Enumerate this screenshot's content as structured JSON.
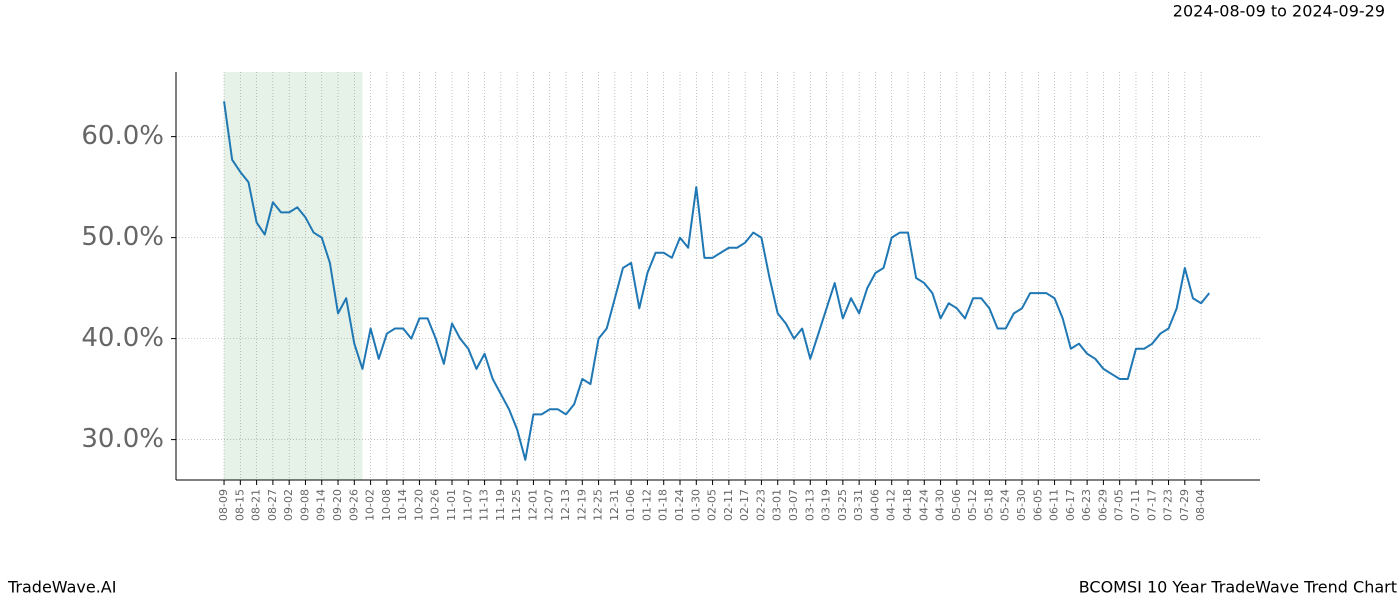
{
  "chart_data": {
    "type": "line",
    "title": "BCOMSI 10 Year TradeWave Trend Chart",
    "subtitle": "2024-08-09 to 2024-09-29",
    "watermark": "TradeWave.AI",
    "highlight_range": [
      0,
      51
    ],
    "highlight_color": "#d6ead7",
    "grid": true,
    "xlim": [
      -17.7,
      381.7
    ],
    "ylim": [
      26,
      66.4
    ],
    "yticks": [
      {
        "value": 30,
        "label": "30.0%"
      },
      {
        "value": 40,
        "label": "40.0%"
      },
      {
        "value": 50,
        "label": "50.0%"
      },
      {
        "value": 60,
        "label": "60.0%"
      }
    ],
    "xticks": [
      {
        "value": 0,
        "label": "08-09"
      },
      {
        "value": 6,
        "label": "08-15"
      },
      {
        "value": 12,
        "label": "08-21"
      },
      {
        "value": 18,
        "label": "08-27"
      },
      {
        "value": 24,
        "label": "09-02"
      },
      {
        "value": 30,
        "label": "09-08"
      },
      {
        "value": 36,
        "label": "09-14"
      },
      {
        "value": 42,
        "label": "09-20"
      },
      {
        "value": 48,
        "label": "09-26"
      },
      {
        "value": 54,
        "label": "10-02"
      },
      {
        "value": 60,
        "label": "10-08"
      },
      {
        "value": 66,
        "label": "10-14"
      },
      {
        "value": 72,
        "label": "10-20"
      },
      {
        "value": 78,
        "label": "10-26"
      },
      {
        "value": 84,
        "label": "11-01"
      },
      {
        "value": 90,
        "label": "11-07"
      },
      {
        "value": 96,
        "label": "11-13"
      },
      {
        "value": 102,
        "label": "11-19"
      },
      {
        "value": 108,
        "label": "11-25"
      },
      {
        "value": 114,
        "label": "12-01"
      },
      {
        "value": 120,
        "label": "12-07"
      },
      {
        "value": 126,
        "label": "12-13"
      },
      {
        "value": 132,
        "label": "12-19"
      },
      {
        "value": 138,
        "label": "12-25"
      },
      {
        "value": 144,
        "label": "12-31"
      },
      {
        "value": 150,
        "label": "01-06"
      },
      {
        "value": 156,
        "label": "01-12"
      },
      {
        "value": 162,
        "label": "01-18"
      },
      {
        "value": 168,
        "label": "01-24"
      },
      {
        "value": 174,
        "label": "01-30"
      },
      {
        "value": 180,
        "label": "02-05"
      },
      {
        "value": 186,
        "label": "02-11"
      },
      {
        "value": 192,
        "label": "02-17"
      },
      {
        "value": 198,
        "label": "02-23"
      },
      {
        "value": 204,
        "label": "03-01"
      },
      {
        "value": 210,
        "label": "03-07"
      },
      {
        "value": 216,
        "label": "03-13"
      },
      {
        "value": 222,
        "label": "03-19"
      },
      {
        "value": 228,
        "label": "03-25"
      },
      {
        "value": 234,
        "label": "03-31"
      },
      {
        "value": 240,
        "label": "04-06"
      },
      {
        "value": 246,
        "label": "04-12"
      },
      {
        "value": 252,
        "label": "04-18"
      },
      {
        "value": 258,
        "label": "04-24"
      },
      {
        "value": 264,
        "label": "04-30"
      },
      {
        "value": 270,
        "label": "05-06"
      },
      {
        "value": 276,
        "label": "05-12"
      },
      {
        "value": 282,
        "label": "05-18"
      },
      {
        "value": 288,
        "label": "05-24"
      },
      {
        "value": 294,
        "label": "05-30"
      },
      {
        "value": 300,
        "label": "06-05"
      },
      {
        "value": 306,
        "label": "06-11"
      },
      {
        "value": 312,
        "label": "06-17"
      },
      {
        "value": 318,
        "label": "06-23"
      },
      {
        "value": 324,
        "label": "06-29"
      },
      {
        "value": 330,
        "label": "07-05"
      },
      {
        "value": 336,
        "label": "07-11"
      },
      {
        "value": 342,
        "label": "07-17"
      },
      {
        "value": 348,
        "label": "07-23"
      },
      {
        "value": 354,
        "label": "07-29"
      },
      {
        "value": 360,
        "label": "08-04"
      }
    ],
    "x": [
      0,
      3,
      6,
      9,
      12,
      15,
      18,
      21,
      24,
      27,
      30,
      33,
      36,
      39,
      42,
      45,
      48,
      51,
      54,
      57,
      60,
      63,
      66,
      69,
      72,
      75,
      78,
      81,
      84,
      87,
      90,
      93,
      96,
      99,
      102,
      105,
      108,
      111,
      114,
      117,
      120,
      123,
      126,
      129,
      132,
      135,
      138,
      141,
      144,
      147,
      150,
      153,
      156,
      159,
      162,
      165,
      168,
      171,
      174,
      177,
      180,
      183,
      186,
      189,
      192,
      195,
      198,
      201,
      204,
      207,
      210,
      213,
      216,
      219,
      222,
      225,
      228,
      231,
      234,
      237,
      240,
      243,
      246,
      249,
      252,
      255,
      258,
      261,
      264,
      267,
      270,
      273,
      276,
      279,
      282,
      285,
      288,
      291,
      294,
      297,
      300,
      303,
      306,
      309,
      312,
      315,
      318,
      321,
      324,
      327,
      330,
      333,
      336,
      339,
      342,
      345,
      348,
      351,
      354,
      357,
      360,
      363
    ],
    "series": [
      {
        "color": "#1f77b4",
        "values": [
          63.5,
          57.7,
          56.5,
          55.5,
          51.5,
          50.3,
          53.5,
          52.5,
          52.5,
          53,
          52,
          50.5,
          50,
          47.5,
          42.5,
          44,
          39.5,
          37,
          41,
          38,
          40.5,
          41,
          41,
          40,
          42,
          42,
          40,
          37.5,
          41.5,
          40,
          39,
          37,
          38.5,
          36,
          34.5,
          33,
          31,
          28,
          32.5,
          32.5,
          33,
          33,
          32.5,
          33.5,
          36,
          35.5,
          40,
          41,
          44,
          47,
          47.5,
          43,
          46.5,
          48.5,
          48.5,
          48,
          50,
          49,
          55,
          48,
          48,
          48.5,
          49,
          49,
          49.5,
          50.5,
          50,
          46,
          42.5,
          41.5,
          40,
          41,
          38,
          40.5,
          43,
          45.5,
          42,
          44,
          42.5,
          45,
          46.5,
          47,
          50,
          50.5,
          50.5,
          46,
          45.5,
          44.5,
          42,
          43.5,
          43,
          42,
          44,
          44,
          43,
          41,
          41,
          42.5,
          43,
          44.5,
          44.5,
          44.5,
          44,
          42,
          39,
          39.5,
          38.5,
          38,
          37,
          36.5,
          36,
          36,
          39,
          39,
          39.5,
          40.5,
          41,
          43,
          47,
          44,
          43.5,
          44.5
        ]
      }
    ]
  }
}
